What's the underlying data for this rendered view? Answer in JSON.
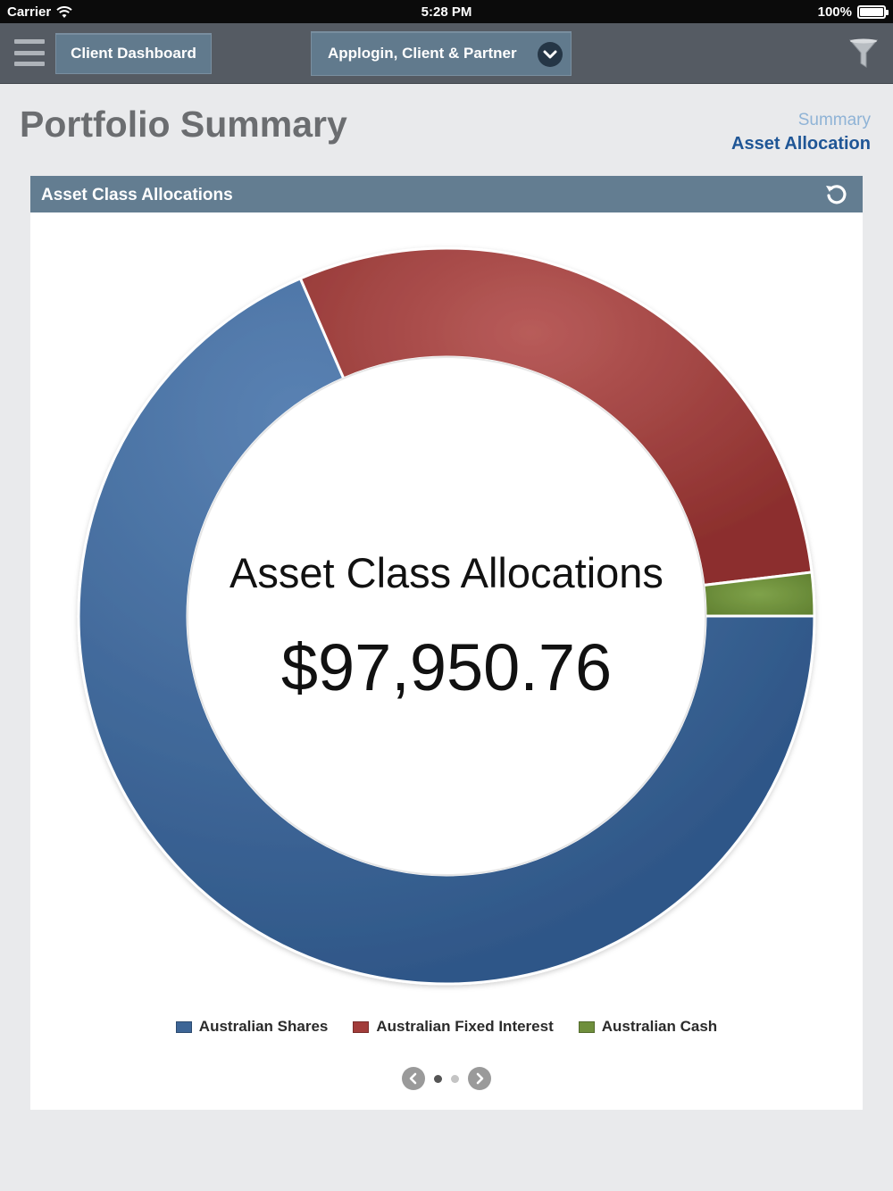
{
  "status_bar": {
    "carrier": "Carrier",
    "time": "5:28 PM",
    "battery": "100%"
  },
  "nav": {
    "dashboard_label": "Client Dashboard",
    "client_selector": "Applogin, Client & Partner",
    "menu_icon": "hamburger-menu-icon",
    "filter_icon": "filter-icon"
  },
  "header": {
    "title": "Portfolio Summary",
    "segments": [
      "Summary",
      "Asset Allocation"
    ],
    "active_segment": "Asset Allocation"
  },
  "panel": {
    "title": "Asset Class Allocations",
    "refresh_icon": "refresh-icon"
  },
  "chart_data": {
    "type": "pie",
    "title": "Asset Class Allocations",
    "total": "$97,950.76",
    "categories": [
      "Australian Shares",
      "Australian Fixed Interest",
      "Australian Cash"
    ],
    "values": [
      68.5,
      29.6,
      1.9
    ],
    "colors": [
      "#3d6596",
      "#a23c3a",
      "#6f8f3c"
    ],
    "legend": "bottom"
  },
  "pager": {
    "pages": 2,
    "current": 1
  },
  "colors": {
    "nav_bg": "#555b63",
    "panel_header": "#637d91",
    "accent": "#1f5696"
  }
}
